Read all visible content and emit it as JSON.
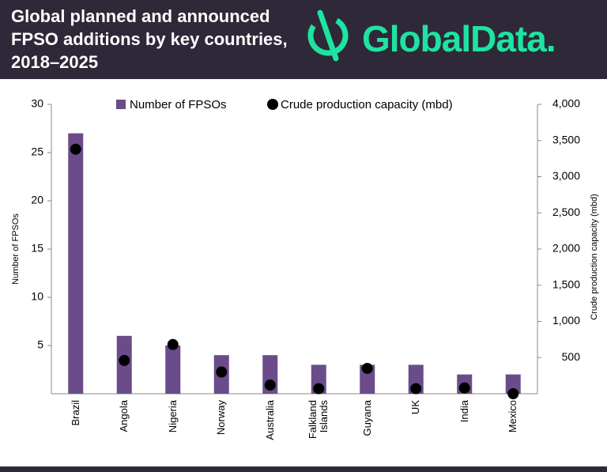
{
  "brand": "GlobalData.",
  "chart_data": {
    "type": "bar_dot",
    "title": "Global planned and announced FPSO additions by key countries, 2018–2025",
    "categories": [
      "Brazil",
      "Angola",
      "Nigeria",
      "Norway",
      "Australia",
      "Falkland Islands",
      "Guyana",
      "UK",
      "India",
      "Mexico"
    ],
    "series": [
      {
        "name": "Number of FPSOs",
        "color": "#6b4c8a",
        "values": [
          27,
          6,
          5,
          4,
          4,
          3,
          3,
          3,
          2,
          2
        ]
      },
      {
        "name": "Crude production capacity (mbd)",
        "color": "#000000",
        "axis": "y2",
        "values": [
          3380,
          460,
          680,
          300,
          120,
          70,
          350,
          70,
          80,
          0
        ]
      }
    ],
    "ylabel": "Number of FPSOs",
    "y2label": "Crude production capacity (mbd)",
    "ylim": [
      0,
      30
    ],
    "yticks": [
      5,
      10,
      15,
      20,
      25,
      30
    ],
    "y2lim": [
      0,
      4000
    ],
    "y2ticks": [
      {
        "value": 500,
        "label": "500"
      },
      {
        "value": 1000,
        "label": "1,000"
      },
      {
        "value": 1500,
        "label": "1,500"
      },
      {
        "value": 2000,
        "label": "2,000"
      },
      {
        "value": 2500,
        "label": "2,500"
      },
      {
        "value": 3000,
        "label": "3,000"
      },
      {
        "value": 3500,
        "label": "3,500"
      },
      {
        "value": 4000,
        "label": "4,000"
      }
    ],
    "grid": false,
    "legend": "top"
  }
}
